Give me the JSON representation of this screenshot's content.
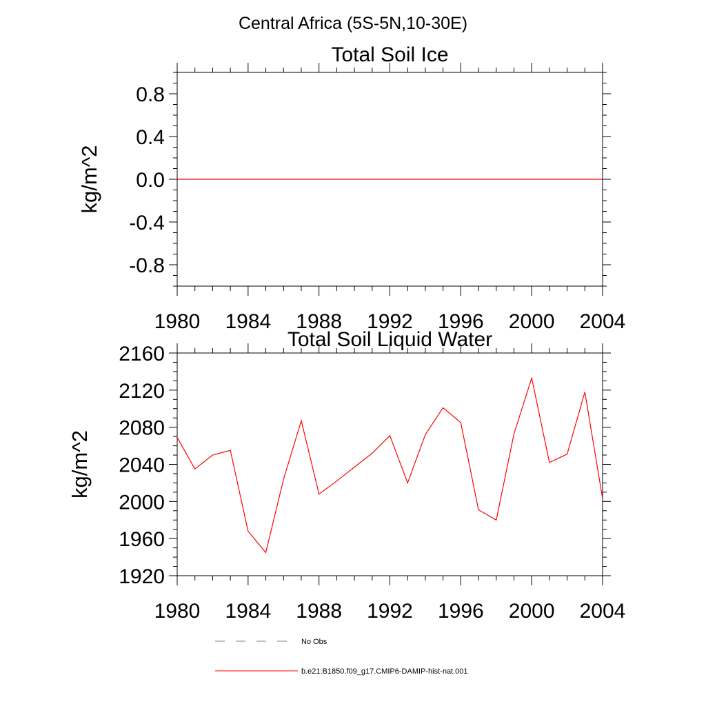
{
  "page": {
    "title": "Central Africa (5S-5N,10-30E)"
  },
  "legend": {
    "placement": "bottom",
    "items": [
      {
        "label": "No Obs",
        "style": "dashed",
        "color": "#7f7fa6"
      },
      {
        "label": "b.e21.B1850.f09_g17.CMIP6-DAMIP-hist-nat.001",
        "style": "solid",
        "color": "#ff0000"
      }
    ]
  },
  "chart_data": [
    {
      "type": "line",
      "title": "Total Soil Ice",
      "ylabel": "kg/m^2",
      "xlabel": "",
      "xlim": [
        1980,
        2004
      ],
      "ylim": [
        -1.0,
        1.0
      ],
      "xticks": [
        1980,
        1984,
        1988,
        1992,
        1996,
        2000,
        2004
      ],
      "yticks": [
        -0.8,
        -0.4,
        0.0,
        0.4,
        0.8
      ],
      "yticklabels": [
        "-0.8",
        "-0.4",
        "0.0",
        "0.4",
        "0.8"
      ],
      "grid": false,
      "series": [
        {
          "name": "b.e21.B1850.f09_g17.CMIP6-DAMIP-hist-nat.001",
          "color": "#ff0000",
          "x": [
            1980,
            1981,
            1982,
            1983,
            1984,
            1985,
            1986,
            1987,
            1988,
            1989,
            1990,
            1991,
            1992,
            1993,
            1994,
            1995,
            1996,
            1997,
            1998,
            1999,
            2000,
            2001,
            2002,
            2003,
            2004
          ],
          "y": [
            0,
            0,
            0,
            0,
            0,
            0,
            0,
            0,
            0,
            0,
            0,
            0,
            0,
            0,
            0,
            0,
            0,
            0,
            0,
            0,
            0,
            0,
            0,
            0,
            0
          ]
        }
      ]
    },
    {
      "type": "line",
      "title": "Total Soil Liquid Water",
      "ylabel": "kg/m^2",
      "xlabel": "",
      "xlim": [
        1980,
        2004
      ],
      "ylim": [
        1920,
        2160
      ],
      "xticks": [
        1980,
        1984,
        1988,
        1992,
        1996,
        2000,
        2004
      ],
      "yticks": [
        1920,
        1960,
        2000,
        2040,
        2080,
        2120,
        2160
      ],
      "yticklabels": [
        "1920",
        "1960",
        "2000",
        "2040",
        "2080",
        "2120",
        "2160"
      ],
      "grid": false,
      "series": [
        {
          "name": "b.e21.B1850.f09_g17.CMIP6-DAMIP-hist-nat.001",
          "color": "#ff0000",
          "x": [
            1980,
            1981,
            1982,
            1983,
            1984,
            1985,
            1986,
            1987,
            1988,
            1989,
            1990,
            1991,
            1992,
            1993,
            1994,
            1995,
            1996,
            1997,
            1998,
            1999,
            2000,
            2001,
            2002,
            2003,
            2004
          ],
          "y": [
            2069,
            2035,
            2050,
            2055,
            1968,
            1945,
            2024,
            2087,
            2008,
            2022,
            2037,
            2052,
            2071,
            2020,
            2072,
            2101,
            2085,
            1991,
            1980,
            2073,
            2133,
            2042,
            2051,
            2118,
            2003
          ]
        }
      ]
    }
  ]
}
